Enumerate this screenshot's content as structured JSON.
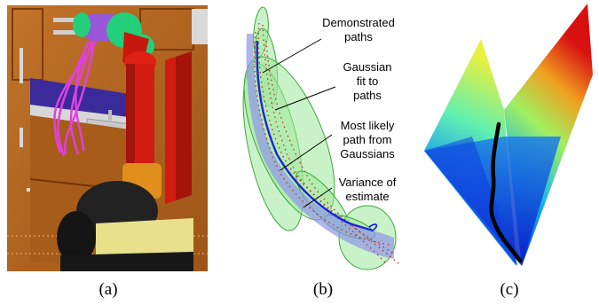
{
  "panels": {
    "a": {
      "caption": "(a)"
    },
    "b": {
      "caption": "(b)",
      "annotations": [
        {
          "lines": [
            "Demonstrated",
            "paths"
          ]
        },
        {
          "lines": [
            "Gaussian",
            "fit to",
            "paths"
          ]
        },
        {
          "lines": [
            "Most likely",
            "path from",
            "Gaussians"
          ]
        },
        {
          "lines": [
            "Variance of",
            "estimate"
          ]
        }
      ]
    },
    "c": {
      "caption": "(c)"
    }
  },
  "colors": {
    "ellipse_fill": "#9ee89a",
    "ellipse_stroke": "#3aa83a",
    "likely_path": "#1f22e0",
    "variance_band": "#8f95e8",
    "demo_dots": "#c0392b",
    "robot_red": "#d21c12",
    "robot_green": "#22d07a",
    "robot_purple": "#9a56d8",
    "demo_paths_magenta": "#e040e0",
    "cabinet_wood": "#b5651d",
    "base_yellow": "#e8e08a",
    "base_black": "#1a1a1a"
  }
}
